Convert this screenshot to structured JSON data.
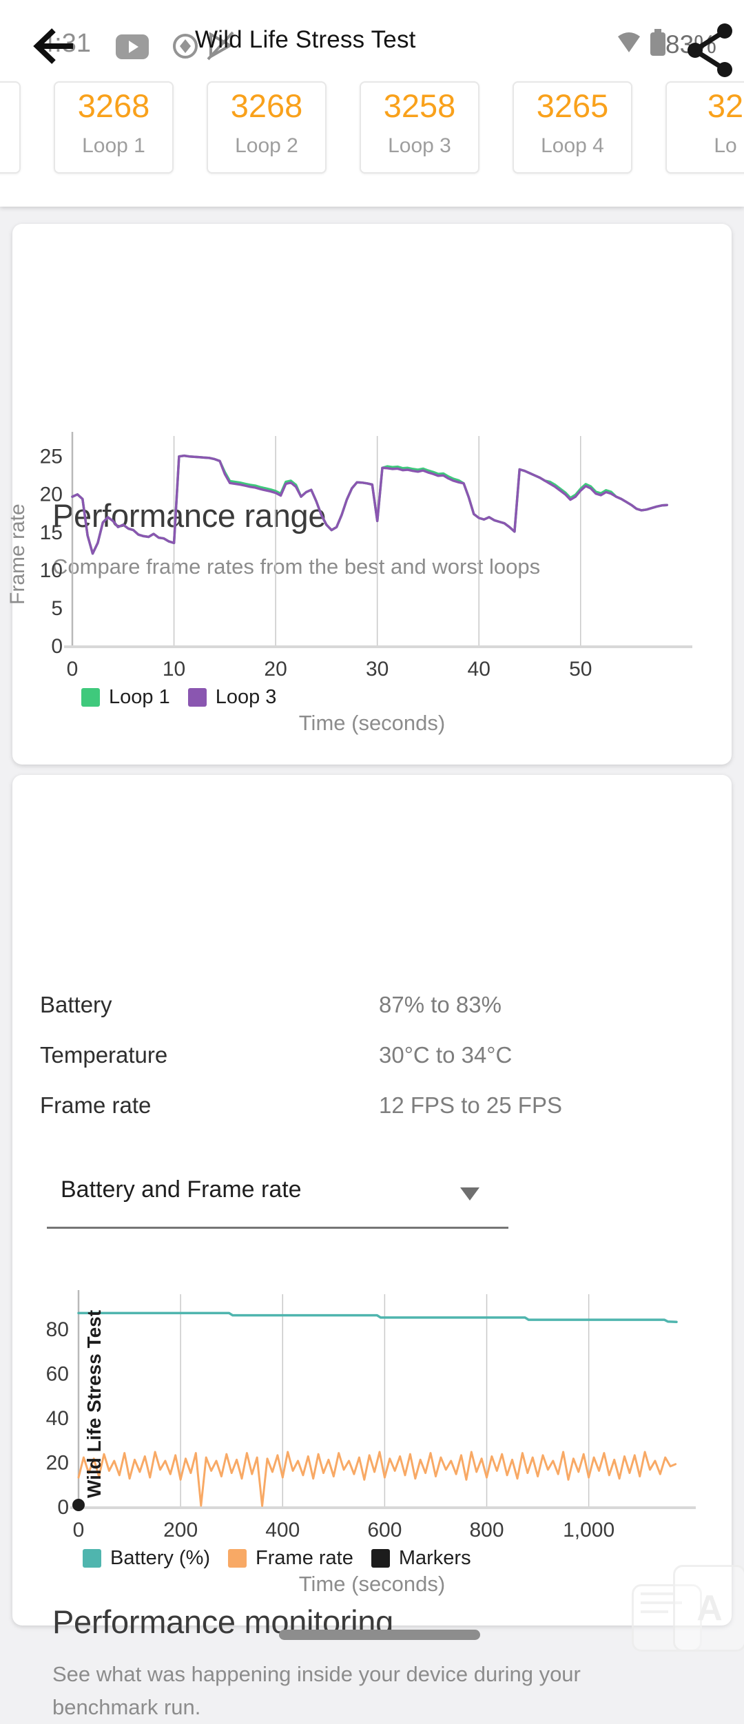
{
  "statusbar": {
    "time": "4:31",
    "battery_percent": "83%"
  },
  "appbar": {
    "title": "Wild Life Stress Test"
  },
  "scores": {
    "items": [
      {
        "value": "",
        "label": ""
      },
      {
        "value": "3268",
        "label": "Loop 1"
      },
      {
        "value": "3268",
        "label": "Loop 2"
      },
      {
        "value": "3258",
        "label": "Loop 3"
      },
      {
        "value": "3265",
        "label": "Loop 4"
      },
      {
        "value": "32",
        "label": "Lo"
      }
    ]
  },
  "performance_range": {
    "title": "Performance range",
    "subtitle": "Compare frame rates from the best and worst loops",
    "ylabel": "Frame rate",
    "xlabel": "Time (seconds)",
    "legend": [
      {
        "label": "Loop 1",
        "color": "#3fc97c"
      },
      {
        "label": "Loop 3",
        "color": "#8a56b0"
      }
    ]
  },
  "performance_monitoring": {
    "title": "Performance monitoring",
    "subtitle": "See what was happening inside your device during your benchmark run.",
    "stats": [
      {
        "label": "Battery",
        "value": "87% to 83%"
      },
      {
        "label": "Temperature",
        "value": "30°C to 34°C"
      },
      {
        "label": "Frame rate",
        "value": "12 FPS to 25 FPS"
      }
    ],
    "dropdown": {
      "value": "Battery and Frame rate"
    },
    "xlabel": "Time (seconds)",
    "legend": [
      {
        "label": "Battery (%)",
        "color": "#4fb5ae"
      },
      {
        "label": "Frame rate",
        "color": "#f8a965"
      },
      {
        "label": "Markers",
        "color": "#1c1c1c"
      }
    ]
  },
  "chart_data": [
    {
      "type": "line",
      "title": "Performance range",
      "xlabel": "Time (seconds)",
      "ylabel": "Frame rate",
      "xlim": [
        0,
        59.3
      ],
      "ylim": [
        0,
        27.6
      ],
      "xticks": [
        0,
        10,
        20,
        30,
        40,
        50
      ],
      "yticks": [
        0,
        5,
        10,
        15,
        20,
        25
      ],
      "grid": "vertical",
      "legend_position": "bottom-left",
      "series": [
        {
          "name": "Loop 1",
          "color": "#3fc97c",
          "x_step": 0.5,
          "width": 3.5,
          "values": [
            19.6,
            19.9,
            19.3,
            14.5,
            12.1,
            13.5,
            16.2,
            16.9,
            16.4,
            15.6,
            15.9,
            15.4,
            15.2,
            14.6,
            14.4,
            14.3,
            14.7,
            14.2,
            14.1,
            13.7,
            13.5,
            24.9,
            25.0,
            24.9,
            24.85,
            24.8,
            24.75,
            24.7,
            24.55,
            24.3,
            22.85,
            21.65,
            21.55,
            21.45,
            21.3,
            21.15,
            21.05,
            20.85,
            20.7,
            20.55,
            20.35,
            20.0,
            21.55,
            21.7,
            21.15,
            19.6,
            20.2,
            20.5,
            19.0,
            17.2,
            15.9,
            15.2,
            15.6,
            17.2,
            19.2,
            20.7,
            21.5,
            21.45,
            21.35,
            21.2,
            16.4,
            23.4,
            23.6,
            23.5,
            23.55,
            23.35,
            23.4,
            23.25,
            23.15,
            23.3,
            23.05,
            22.85,
            22.6,
            22.65,
            22.25,
            21.95,
            21.75,
            21.35,
            19.5,
            17.3,
            16.8,
            16.6,
            16.9,
            16.5,
            16.3,
            16.1,
            15.6,
            15.0,
            23.2,
            23.0,
            22.7,
            22.4,
            22.1,
            21.7,
            21.55,
            21.15,
            20.65,
            20.15,
            19.45,
            19.85,
            20.65,
            21.25,
            20.95,
            20.25,
            20.05,
            20.45,
            20.25,
            19.6,
            19.3,
            18.9,
            18.5,
            18.0,
            17.8,
            17.9,
            18.1,
            18.3,
            18.45,
            18.5
          ]
        },
        {
          "name": "Loop 3",
          "color": "#8a56b0",
          "x_step": 0.5,
          "width": 3.5,
          "values": [
            19.6,
            19.9,
            19.3,
            14.5,
            12.1,
            13.5,
            16.2,
            16.9,
            16.4,
            15.6,
            15.9,
            15.4,
            15.2,
            14.6,
            14.4,
            14.3,
            14.7,
            14.2,
            14.1,
            13.7,
            13.5,
            24.9,
            25.0,
            24.9,
            24.85,
            24.8,
            24.75,
            24.7,
            24.55,
            24.3,
            22.6,
            21.4,
            21.3,
            21.2,
            21.05,
            20.9,
            20.8,
            20.6,
            20.45,
            20.3,
            20.1,
            19.75,
            21.3,
            21.45,
            20.9,
            19.6,
            20.2,
            20.5,
            19.0,
            17.2,
            15.9,
            15.2,
            15.6,
            17.2,
            19.2,
            20.7,
            21.5,
            21.45,
            21.35,
            21.2,
            16.4,
            23.4,
            23.35,
            23.25,
            23.3,
            23.1,
            23.15,
            23.0,
            22.9,
            23.05,
            22.8,
            22.6,
            22.35,
            22.4,
            22.0,
            21.7,
            21.5,
            21.35,
            19.5,
            17.3,
            16.8,
            16.6,
            16.9,
            16.5,
            16.3,
            16.1,
            15.6,
            15.0,
            23.2,
            23.0,
            22.7,
            22.4,
            22.1,
            21.7,
            21.3,
            20.9,
            20.4,
            19.9,
            19.2,
            19.6,
            20.4,
            21.0,
            20.7,
            20.0,
            19.8,
            20.2,
            20.0,
            19.6,
            19.3,
            18.9,
            18.5,
            18.0,
            17.8,
            17.9,
            18.1,
            18.3,
            18.45,
            18.5
          ]
        }
      ]
    },
    {
      "type": "line",
      "title": "Performance monitoring",
      "xlabel": "Time (seconds)",
      "ylabel": "",
      "xlim": [
        0,
        1176
      ],
      "ylim": [
        0,
        95.5
      ],
      "xticks": [
        0,
        200,
        400,
        600,
        800,
        1000
      ],
      "xtick_labels": [
        "0",
        "200",
        "400",
        "600",
        "800",
        "1,000"
      ],
      "yticks": [
        0,
        20,
        40,
        60,
        80
      ],
      "grid": "vertical",
      "legend_position": "bottom-left",
      "marker": {
        "t": 0,
        "label": "Wild Life Stress Test",
        "color": "#1c1c1c"
      },
      "series": [
        {
          "name": "Battery (%)",
          "color": "#4fb5ae",
          "width": 3.5,
          "points": [
            [
              0,
              87
            ],
            [
              295,
              87
            ],
            [
              302,
              86
            ],
            [
              585,
              86
            ],
            [
              592,
              85
            ],
            [
              875,
              85
            ],
            [
              882,
              84
            ],
            [
              1148,
              84
            ],
            [
              1155,
              83.2
            ],
            [
              1172,
              83
            ]
          ]
        },
        {
          "name": "Frame rate",
          "color": "#f8a965",
          "x_step": 10,
          "width": 3,
          "values": [
            13,
            22,
            15,
            21.5,
            13.5,
            23.5,
            16,
            20.5,
            14,
            24,
            12.5,
            21,
            15.5,
            22.5,
            13,
            24.5,
            16.5,
            20.5,
            14.5,
            23,
            12,
            21.5,
            15,
            24,
            0.3,
            22,
            16,
            20.5,
            13.5,
            23.5,
            15,
            21,
            12.5,
            24,
            14.5,
            22,
            0.2,
            21.5,
            15.5,
            23,
            13,
            24.5,
            16,
            20.5,
            14,
            22.5,
            12.5,
            23.5,
            15,
            21,
            13.5,
            24,
            16.5,
            20.5,
            14.5,
            22,
            12,
            23,
            15.5,
            24.5,
            13,
            21.5,
            16,
            22.5,
            14,
            23.5,
            12.5,
            21,
            15,
            24,
            13.5,
            22,
            16.5,
            20.5,
            14.5,
            23,
            12,
            24.5,
            15.5,
            21.5,
            13,
            22.5,
            16,
            23.5,
            14,
            21,
            12.5,
            24,
            15,
            22,
            13.5,
            23,
            16.5,
            20.5,
            14.5,
            24.5,
            12,
            21.5,
            15.5,
            23.5,
            13,
            22,
            16,
            24,
            14,
            21,
            12.5,
            22.5,
            15,
            23,
            13.5,
            24.5,
            16.5,
            20.5,
            14.5,
            22,
            18,
            19
          ]
        }
      ]
    }
  ]
}
